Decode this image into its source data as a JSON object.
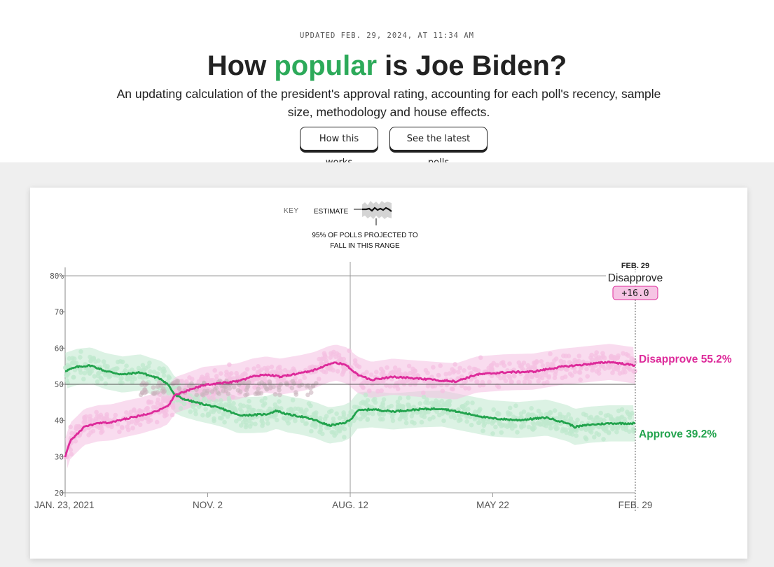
{
  "header": {
    "updated": "UPDATED FEB. 29, 2024, AT 11:34 AM",
    "title_pre": "How",
    "title_highlight": "popular",
    "title_post": "is Joe Biden?",
    "subtitle": "An updating calculation of the president's approval rating, accounting for each poll's recency, sample size, methodology and house effects.",
    "buttons": [
      "How this works",
      "See the latest polls"
    ]
  },
  "key": {
    "label": "KEY",
    "estimate": "ESTIMATE",
    "range_line1": "95% OF POLLS PROJECTED TO",
    "range_line2": "FALL IN THIS RANGE"
  },
  "colors": {
    "approve": "#22a34d",
    "approve_light": "#bfe8cd",
    "disapprove": "#dd2a9a",
    "disapprove_light": "#f4c0e1",
    "overlap": "#c9b2bd",
    "highlight_green": "#2daa5a"
  },
  "chart_data": {
    "type": "line",
    "title": "How popular is Joe Biden?",
    "xlabel": "",
    "ylabel": "",
    "x_unit": "days since Jan. 23, 2021",
    "xlim": [
      0,
      1132
    ],
    "ylim": [
      20,
      80
    ],
    "yticks": [
      20,
      30,
      40,
      50,
      60,
      70,
      80
    ],
    "ytick_labels": [
      "20",
      "30",
      "40",
      "50",
      "60",
      "70",
      "80%"
    ],
    "xticks": [
      0,
      283,
      566,
      849,
      1132
    ],
    "xtick_labels": [
      "JAN. 23, 2021",
      "NOV. 2",
      "AUG. 12",
      "MAY 22",
      "FEB. 29"
    ],
    "reference_line": 50,
    "grid": "major verticals at tick dates",
    "band_halfwidth": 5,
    "series": [
      {
        "name": "Approve",
        "final_label": "Approve 39.2%",
        "final_value": 39.2,
        "x": [
          0,
          24,
          51,
          79,
          114,
          149,
          170,
          190,
          204,
          218,
          234,
          259,
          287,
          315,
          343,
          371,
          399,
          420,
          441,
          468,
          496,
          524,
          552,
          566,
          580,
          608,
          650,
          706,
          748,
          790,
          845,
          900,
          956,
          998,
          1012,
          1040,
          1081,
          1132
        ],
        "values": [
          53.7,
          54.8,
          55.2,
          53.7,
          52.7,
          53.3,
          52.3,
          51.5,
          50.0,
          47.0,
          46.0,
          45.0,
          44.1,
          43.1,
          41.5,
          41.5,
          41.7,
          42.7,
          41.7,
          41.1,
          40.1,
          38.6,
          39.2,
          40.1,
          42.7,
          43.1,
          42.5,
          43.1,
          43.3,
          42.1,
          40.6,
          40.1,
          40.8,
          39.2,
          38.2,
          38.8,
          39.2,
          39.2
        ]
      },
      {
        "name": "Disapprove",
        "final_label": "Disapprove 55.2%",
        "final_value": 55.2,
        "x": [
          0,
          10,
          38,
          65,
          93,
          121,
          149,
          190,
          204,
          218,
          239,
          274,
          315,
          343,
          371,
          399,
          427,
          468,
          496,
          524,
          538,
          559,
          580,
          608,
          650,
          706,
          776,
          817,
          873,
          929,
          984,
          1040,
          1081,
          1132
        ],
        "values": [
          30.0,
          34.3,
          38.2,
          39.2,
          39.5,
          40.5,
          41.3,
          43.0,
          44.0,
          47.0,
          48.0,
          49.8,
          50.4,
          50.8,
          52.1,
          52.7,
          52.1,
          53.1,
          54.0,
          55.6,
          56.0,
          55.2,
          52.7,
          51.2,
          52.1,
          51.5,
          50.8,
          52.7,
          53.3,
          53.5,
          54.8,
          55.6,
          56.2,
          55.2
        ]
      }
    ],
    "annotation": {
      "date": "FEB. 29",
      "leader": "Disapprove",
      "margin": "+16.0"
    }
  }
}
